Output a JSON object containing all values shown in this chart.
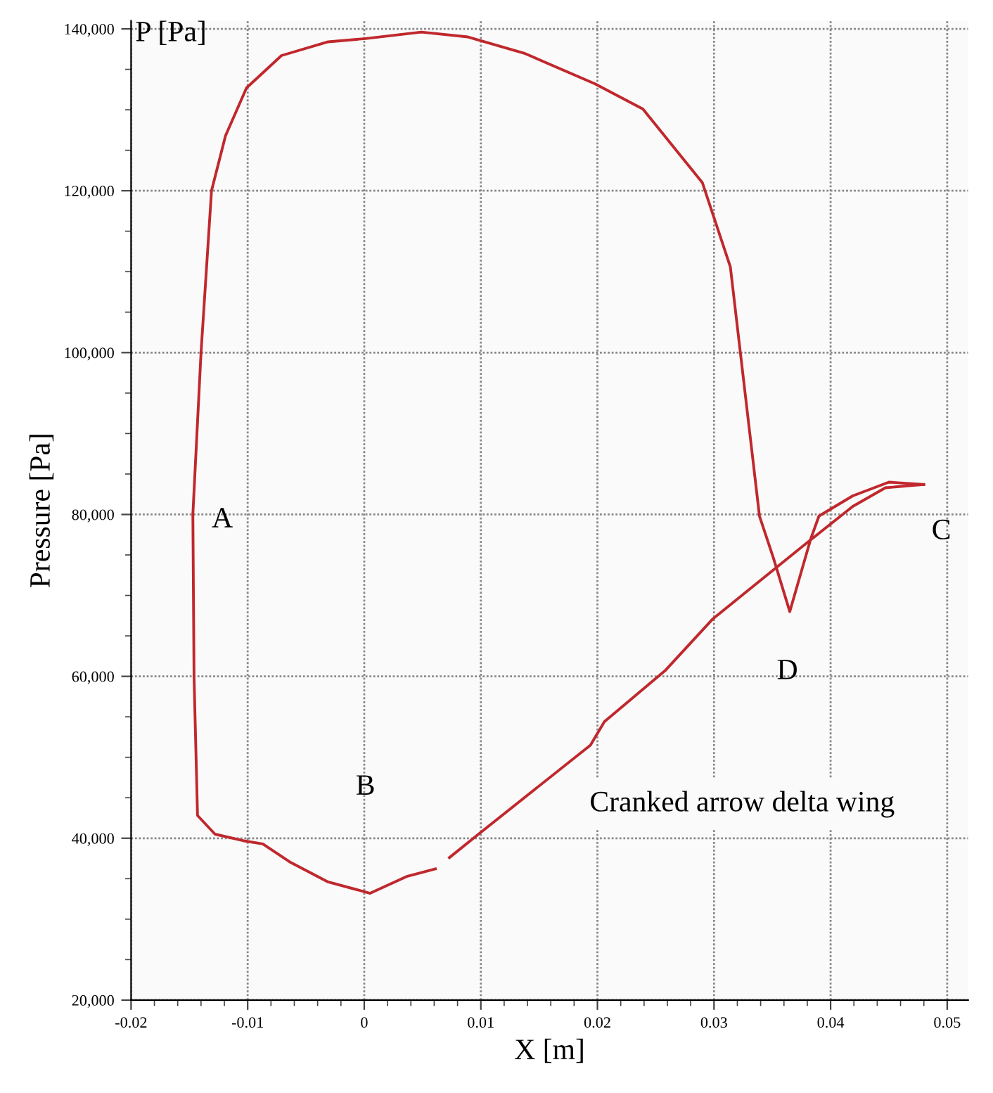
{
  "chart_data": {
    "type": "line",
    "xlabel": "X [m]",
    "ylabel": "Pressure [Pa]",
    "x": [
      0.048,
      0.0447,
      0.0419,
      0.0378,
      0.0299,
      0.0258,
      0.0206,
      0.0194,
      0.0098,
      0.0073,
      null,
      0.0061,
      0.0037,
      0.0005,
      -0.0031,
      -0.0063,
      -0.0087,
      -0.0104,
      -0.0128,
      -0.0143,
      -0.0146,
      -0.0147,
      -0.014,
      -0.0131,
      -0.0119,
      -0.0101,
      -0.0071,
      -0.0031,
      0.0001,
      0.0049,
      0.0089,
      0.0137,
      0.0198,
      0.0239,
      0.029,
      0.0314,
      0.0339,
      0.0351,
      0.0365,
      0.0383,
      0.039,
      0.0419,
      0.045,
      0.048
    ],
    "series": [
      {
        "color": "#c0282d",
        "values": [
          83700,
          83300,
          81000,
          76300,
          67100,
          60700,
          54400,
          51500,
          40500,
          37600,
          null,
          36200,
          35300,
          33200,
          34600,
          37000,
          39300,
          39700,
          40500,
          42800,
          60000,
          80000,
          100000,
          120000,
          126800,
          132700,
          136700,
          138400,
          138800,
          139600,
          139000,
          137000,
          133200,
          130100,
          121000,
          110600,
          79800,
          74600,
          68000,
          77000,
          79800,
          82300,
          84000,
          83700
        ]
      }
    ],
    "xlim": [
      -0.02,
      0.0518
    ],
    "ylim": [
      20000,
      141000
    ],
    "xticks": [
      -0.02,
      -0.01,
      0,
      0.01,
      0.02,
      0.03,
      0.04,
      0.05
    ],
    "yticks": [
      {
        "value": 20000,
        "label": "20,000"
      },
      {
        "value": 40000,
        "label": "40,000"
      },
      {
        "value": 60000,
        "label": "60,000"
      },
      {
        "value": 80000,
        "label": "80,000"
      },
      {
        "value": 100000,
        "label": "100,000"
      },
      {
        "value": 120000,
        "label": "120,000"
      },
      {
        "value": 140000,
        "label": "140,000"
      }
    ],
    "grid": true,
    "marker": "none",
    "line_style": "solid",
    "annotations": [
      "A",
      "B",
      "C",
      "D",
      "P [Pa]",
      "Cranked arrow delta wing"
    ]
  }
}
